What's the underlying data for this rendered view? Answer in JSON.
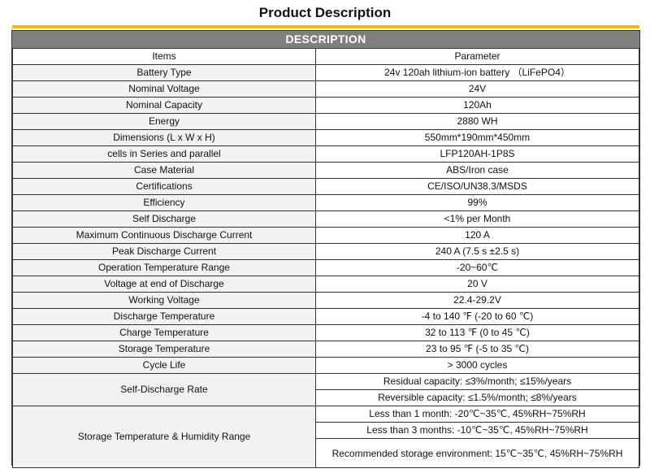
{
  "page_title": "Product Description",
  "table_title": "DESCRIPTION",
  "columns": {
    "items": "Items",
    "parameter": "Parameter"
  },
  "rows": [
    {
      "item": "Battery Type",
      "value": "24v 120ah lithium-ion battery （LiFePO4）"
    },
    {
      "item": "Nominal Voltage",
      "value": "24V"
    },
    {
      "item": "Nominal Capacity",
      "value": "120Ah"
    },
    {
      "item": "Energy",
      "value": "2880 WH"
    },
    {
      "item": "Dimensions (L x W x H)",
      "value": "550mm*190mm*450mm"
    },
    {
      "item": "cells in Series and parallel",
      "value": "LFP120AH-1P8S"
    },
    {
      "item": "Case Material",
      "value": "ABS/Iron case"
    },
    {
      "item": "Certifications",
      "value": "CE/ISO/UN38.3/MSDS"
    },
    {
      "item": "Efficiency",
      "value": "99%"
    },
    {
      "item": "Self Discharge",
      "value": "<1% per Month"
    },
    {
      "item": "Maximum Continuous Discharge Current",
      "value": "120 A"
    },
    {
      "item": "Peak Discharge Current",
      "value": "240 A (7.5 s ±2.5 s)"
    },
    {
      "item": "Operation Temperature Range",
      "value": "-20~60℃"
    },
    {
      "item": "Voltage at end of Discharge",
      "value": "20 V"
    },
    {
      "item": "Working Voltage",
      "value": "22.4-29.2V"
    },
    {
      "item": "Discharge Temperature",
      "value": "-4 to 140 ℉ (-20 to 60 ℃)"
    },
    {
      "item": "Charge Temperature",
      "value": "32 to 113 ℉ (0 to 45 ℃)"
    },
    {
      "item": "Storage Temperature",
      "value": "23 to 95 ℉ (-5 to 35 ℃)"
    },
    {
      "item": "Cycle Life",
      "value": "> 3000 cycles"
    }
  ],
  "self_discharge_rate": {
    "item": "Self-Discharge Rate",
    "values": [
      "Residual capacity: ≤3%/month; ≤15%/years",
      "Reversible capacity: ≤1.5%/month; ≤8%/years"
    ]
  },
  "storage_humidity": {
    "item": "Storage Temperature & Humidity Range",
    "values": [
      "Less than 1 month: -20℃~35℃, 45%RH~75%RH",
      "Less than 3 months: -10℃~35℃, 45%RH~75%RH",
      "Recommended storage environment: 15℃~35℃, 45%RH~75%RH"
    ]
  }
}
